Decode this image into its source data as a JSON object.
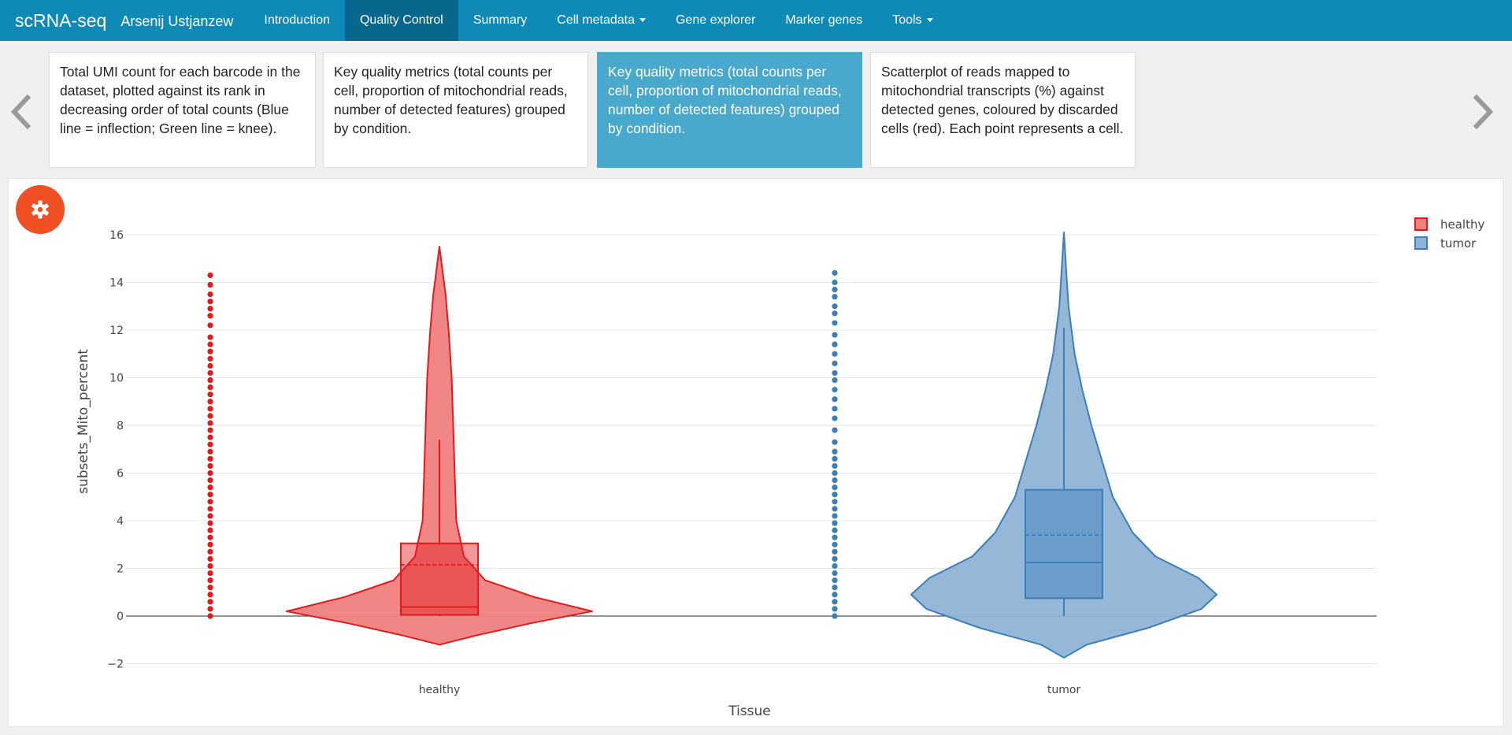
{
  "navbar": {
    "brand": "scRNA-seq",
    "author": "Arsenij Ustjanzew",
    "items": [
      {
        "label": "Introduction",
        "active": false,
        "dropdown": false
      },
      {
        "label": "Quality Control",
        "active": true,
        "dropdown": false
      },
      {
        "label": "Summary",
        "active": false,
        "dropdown": false
      },
      {
        "label": "Cell metadata",
        "active": false,
        "dropdown": true
      },
      {
        "label": "Gene explorer",
        "active": false,
        "dropdown": false
      },
      {
        "label": "Marker genes",
        "active": false,
        "dropdown": false
      },
      {
        "label": "Tools",
        "active": false,
        "dropdown": true
      }
    ]
  },
  "carousel": {
    "prev_icon": "chevron-left-icon",
    "next_icon": "chevron-right-icon",
    "cards": [
      {
        "text": "Total UMI count for each barcode in the dataset, plotted against its rank in decreasing order of total counts (Blue line = inflection; Green line = knee).",
        "active": false
      },
      {
        "text": "Key quality metrics (total counts per cell, proportion of mitochondrial reads, number of detected features) grouped by condition.",
        "active": false
      },
      {
        "text": "Key quality metrics (total counts per cell, proportion of mitochondrial reads, number of detected features) grouped by condition.",
        "active": true
      },
      {
        "text": "Scatterplot of reads mapped to mitochondrial transcripts (%) against detected genes, coloured by discarded cells (red). Each point represents a cell.",
        "active": false
      }
    ]
  },
  "settings_button": {
    "icon": "gear-icon",
    "color": "#f04e23"
  },
  "colors": {
    "navbar": "#0f89b5",
    "nav_active": "#08678c",
    "card_active": "#49a9cd",
    "healthy": "#e31a1c",
    "tumor": "#3a7fba"
  },
  "chart_data": {
    "type": "violin",
    "xlabel": "Tissue",
    "ylabel": "subsets_Mito_percent",
    "categories": [
      "healthy",
      "tumor"
    ],
    "ylim": [
      -2.5,
      16.5
    ],
    "yticks": [
      -2,
      0,
      2,
      4,
      6,
      8,
      10,
      12,
      14,
      16
    ],
    "grid": true,
    "legend_position": "top-right",
    "series": [
      {
        "name": "healthy",
        "color": "#e31a1c",
        "fill": "#ef8080",
        "box": {
          "q1": 0.05,
          "median": 0.38,
          "mean": 2.15,
          "q3": 3.05,
          "whisker_low": 0,
          "whisker_high": 7.4
        },
        "violin_range": [
          -1.2,
          15.5
        ],
        "violin_profile": [
          [
            -1.2,
            0.0
          ],
          [
            -0.8,
            0.25
          ],
          [
            -0.3,
            0.6
          ],
          [
            0.2,
            1.0
          ],
          [
            0.8,
            0.62
          ],
          [
            1.5,
            0.3
          ],
          [
            2.5,
            0.16
          ],
          [
            4,
            0.11
          ],
          [
            6,
            0.1
          ],
          [
            8,
            0.09
          ],
          [
            10,
            0.08
          ],
          [
            12,
            0.06
          ],
          [
            13.5,
            0.04
          ],
          [
            14.5,
            0.02
          ],
          [
            15.5,
            0.0
          ]
        ],
        "points_range": [
          0,
          14.3
        ],
        "points": [
          0,
          0.3,
          0.6,
          0.9,
          1.2,
          1.5,
          1.8,
          2.1,
          2.4,
          2.7,
          3.0,
          3.3,
          3.6,
          3.9,
          4.2,
          4.5,
          4.8,
          5.1,
          5.4,
          5.7,
          6.0,
          6.3,
          6.6,
          6.9,
          7.2,
          7.5,
          7.8,
          8.1,
          8.4,
          8.7,
          9.0,
          9.3,
          9.6,
          9.9,
          10.2,
          10.5,
          10.8,
          11.1,
          11.4,
          11.7,
          12.2,
          12.6,
          12.9,
          13.2,
          13.5,
          13.9,
          14.3
        ]
      },
      {
        "name": "tumor",
        "color": "#3a7fba",
        "fill": "#8fb3d6",
        "box": {
          "q1": 0.75,
          "median": 2.25,
          "mean": 3.4,
          "q3": 5.3,
          "whisker_low": 0,
          "whisker_high": 12.1
        },
        "violin_range": [
          -1.75,
          16.1
        ],
        "violin_profile": [
          [
            -1.75,
            0.0
          ],
          [
            -1.2,
            0.15
          ],
          [
            -0.5,
            0.55
          ],
          [
            0.3,
            0.9
          ],
          [
            0.9,
            1.0
          ],
          [
            1.6,
            0.88
          ],
          [
            2.5,
            0.6
          ],
          [
            3.5,
            0.45
          ],
          [
            5,
            0.32
          ],
          [
            6.5,
            0.25
          ],
          [
            8,
            0.18
          ],
          [
            9.5,
            0.12
          ],
          [
            11,
            0.07
          ],
          [
            13,
            0.03
          ],
          [
            14.5,
            0.015
          ],
          [
            16.1,
            0.0
          ]
        ],
        "points_range": [
          0,
          14.4
        ],
        "points": [
          0,
          0.3,
          0.6,
          0.9,
          1.2,
          1.5,
          1.8,
          2.1,
          2.4,
          2.7,
          3.0,
          3.3,
          3.6,
          3.9,
          4.2,
          4.5,
          4.8,
          5.1,
          5.4,
          5.7,
          6.0,
          6.3,
          6.6,
          6.9,
          7.3,
          7.8,
          8.3,
          8.7,
          9.1,
          9.5,
          9.9,
          10.2,
          10.6,
          11.0,
          11.4,
          11.8,
          12.3,
          12.7,
          13.0,
          13.4,
          13.7,
          14.0,
          14.4
        ]
      }
    ]
  }
}
